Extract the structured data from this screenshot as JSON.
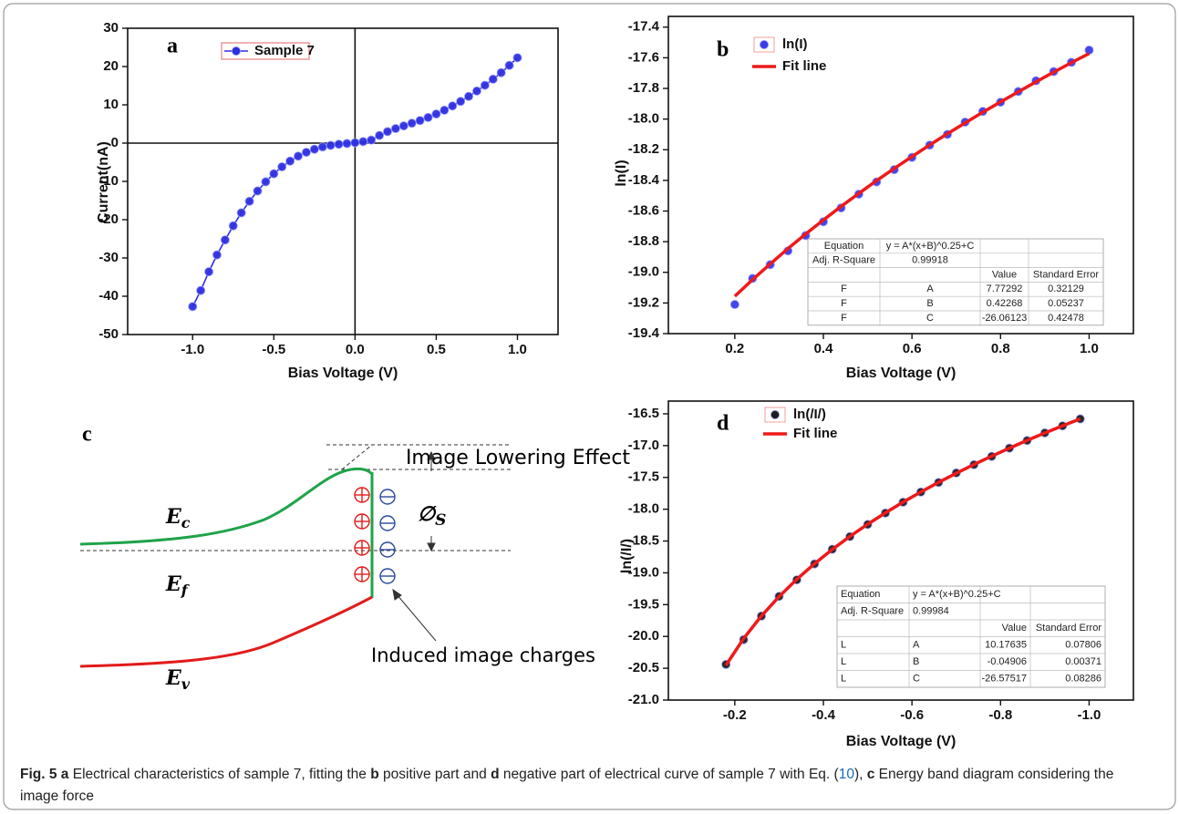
{
  "chart_data": [
    {
      "type": "line",
      "panel_label": "a",
      "x_label": "Bias Voltage (V)",
      "y_label": "Current(nA)",
      "xlim": [
        -1.4,
        1.25
      ],
      "ylim": [
        -50,
        30
      ],
      "xticks": [
        {
          "value": -1,
          "label": "-1.0"
        },
        -0.5,
        {
          "value": 0,
          "label": "0.0"
        },
        0.5,
        {
          "value": 1,
          "label": "1.0"
        }
      ],
      "yticks": [
        -50,
        -40,
        -30,
        -20,
        -10,
        0,
        10,
        20,
        30
      ],
      "zero_lines": true,
      "x": [
        -1.0,
        -0.95,
        -0.9,
        -0.85,
        -0.8,
        -0.75,
        -0.7,
        -0.65,
        -0.6,
        -0.55,
        -0.5,
        -0.45,
        -0.4,
        -0.35,
        -0.3,
        -0.25,
        -0.2,
        -0.15,
        -0.1,
        -0.05,
        0.0,
        0.05,
        0.1,
        0.15,
        0.2,
        0.25,
        0.3,
        0.35,
        0.4,
        0.45,
        0.5,
        0.55,
        0.6,
        0.65,
        0.7,
        0.75,
        0.8,
        0.85,
        0.9,
        0.95,
        1.0
      ],
      "series": [
        {
          "name": "Sample 7",
          "color": "#2f2fe0",
          "mode": "line+markers",
          "values": [
            -42.7,
            -38.5,
            -33.6,
            -29.2,
            -25.3,
            -21.6,
            -18.2,
            -15.2,
            -12.5,
            -10.1,
            -8.0,
            -6.2,
            -4.7,
            -3.4,
            -2.4,
            -1.6,
            -1.0,
            -0.6,
            -0.3,
            -0.1,
            0.1,
            0.4,
            0.8,
            2.0,
            3.0,
            3.8,
            4.5,
            5.2,
            5.9,
            6.7,
            7.6,
            8.6,
            9.7,
            10.9,
            12.2,
            13.6,
            15.1,
            16.7,
            18.4,
            20.3,
            22.3
          ]
        }
      ]
    },
    {
      "type": "scatter",
      "panel_label": "b",
      "x_label": "Bias Voltage (V)",
      "y_label": "ln(I)",
      "xlim": [
        0.05,
        1.1
      ],
      "ylim": [
        -19.4,
        -17.33
      ],
      "xticks": [
        0.2,
        0.4,
        0.6,
        0.8,
        {
          "value": 1,
          "label": "1.0"
        }
      ],
      "yticks": [
        -19.4,
        -19.2,
        {
          "value": -19,
          "label": "-19.0"
        },
        -18.8,
        -18.6,
        -18.4,
        -18.2,
        {
          "value": -18,
          "label": "-18.0"
        },
        -17.8,
        -17.6,
        -17.4
      ],
      "x": [
        0.2,
        0.24,
        0.28,
        0.32,
        0.36,
        0.4,
        0.44,
        0.48,
        0.52,
        0.56,
        0.6,
        0.64,
        0.68,
        0.72,
        0.76,
        0.8,
        0.84,
        0.88,
        0.92,
        0.96,
        1.0
      ],
      "series": [
        {
          "name": "ln(I)",
          "color": "#3b3bea",
          "mode": "markers",
          "values": [
            -19.21,
            -19.04,
            -18.95,
            -18.86,
            -18.76,
            -18.67,
            -18.58,
            -18.49,
            -18.41,
            -18.33,
            -18.25,
            -18.17,
            -18.1,
            -18.02,
            -17.95,
            -17.89,
            -17.82,
            -17.75,
            -17.69,
            -17.63,
            -17.55
          ]
        },
        {
          "name": "Fit line",
          "color": "#ee1a1a",
          "mode": "line",
          "values": [
            -19.156,
            -19.048,
            -18.945,
            -18.845,
            -18.75,
            -18.659,
            -18.57,
            -18.485,
            -18.402,
            -18.322,
            -18.245,
            -18.169,
            -18.096,
            -18.025,
            -17.955,
            -17.888,
            -17.822,
            -17.757,
            -17.694,
            -17.632,
            -17.572
          ]
        }
      ],
      "fit_table": {
        "rows": [
          [
            "Equation",
            "y = A*(x+B)^0.25+C",
            null,
            null
          ],
          [
            "Adj. R-Square",
            "0.99918",
            null,
            null
          ],
          [
            null,
            null,
            "Value",
            "Standard Error"
          ],
          [
            "F",
            "A",
            "7.77292",
            "0.32129"
          ],
          [
            "F",
            "B",
            "0.42268",
            "0.05237"
          ],
          [
            "F",
            "C",
            "-26.06123",
            "0.42478"
          ]
        ]
      }
    },
    {
      "type": "scatter",
      "panel_label": "d",
      "x_label": "Bias Voltage (V)",
      "y_label": "ln(/I/)",
      "xlim": [
        -0.05,
        -1.1
      ],
      "ylim": [
        -21,
        -16.3
      ],
      "xticks": [
        -0.2,
        -0.4,
        -0.6,
        -0.8,
        {
          "value": -1,
          "label": "-1.0"
        }
      ],
      "yticks": [
        {
          "value": -21,
          "label": "-21.0"
        },
        -20.5,
        {
          "value": -20,
          "label": "-20.0"
        },
        -19.5,
        {
          "value": -19,
          "label": "-19.0"
        },
        -18.5,
        {
          "value": -18,
          "label": "-18.0"
        },
        -17.5,
        {
          "value": -17,
          "label": "-17.0"
        },
        -16.5
      ],
      "x": [
        -0.18,
        -0.22,
        -0.26,
        -0.3,
        -0.34,
        -0.38,
        -0.42,
        -0.46,
        -0.5,
        -0.54,
        -0.58,
        -0.62,
        -0.66,
        -0.7,
        -0.74,
        -0.78,
        -0.82,
        -0.86,
        -0.9,
        -0.94,
        -0.98
      ],
      "series": [
        {
          "name": "ln(/I/)",
          "color": "#1e1e1e",
          "mode": "markers",
          "values": [
            -20.44,
            -20.05,
            -19.68,
            -19.37,
            -19.11,
            -18.86,
            -18.63,
            -18.43,
            -18.24,
            -18.06,
            -17.89,
            -17.73,
            -17.58,
            -17.43,
            -17.3,
            -17.17,
            -17.04,
            -16.92,
            -16.8,
            -16.69,
            -16.58
          ]
        },
        {
          "name": "Fit line",
          "color": "#ee1a1a",
          "mode": "line",
          "values": [
            -20.454,
            -20.032,
            -19.679,
            -19.373,
            -19.101,
            -18.857,
            -18.633,
            -18.427,
            -18.236,
            -18.057,
            -17.888,
            -17.729,
            -17.578,
            -17.434,
            -17.297,
            -17.166,
            -17.04,
            -16.918,
            -16.801,
            -16.688,
            -16.579
          ]
        }
      ],
      "fit_table": {
        "rows": [
          [
            "Equation",
            "y = A*(x+B)^0.25+C",
            null,
            null
          ],
          [
            "Adj. R-Square",
            "0.99984",
            null,
            null
          ],
          [
            null,
            null,
            "Value",
            "Standard Error"
          ],
          [
            "L",
            "A",
            "10.17635",
            "0.07806"
          ],
          [
            "L",
            "B",
            "-0.04906",
            "0.00371"
          ],
          [
            "L",
            "C",
            "-26.57517",
            "0.08286"
          ]
        ]
      }
    }
  ],
  "diagram": {
    "panel_label": "c",
    "title": "Image Lowering Effect",
    "barrier": {
      "main": "∅",
      "sub": "S"
    },
    "conduction": {
      "main": "E",
      "sub": "c"
    },
    "fermi": {
      "main": "E",
      "sub": "f"
    },
    "valence": {
      "main": "E",
      "sub": "v"
    },
    "note": "Induced image charges"
  },
  "caption": {
    "label": "Fig. 5",
    "segments": [
      "a",
      " Electrical characteristics of sample 7, fitting the ",
      "b",
      " positive part and ",
      "d",
      " negative part of electrical curve of sample 7 with Eq. (",
      "10",
      "), ",
      "c",
      " Energy band diagram considering the image force"
    ]
  }
}
